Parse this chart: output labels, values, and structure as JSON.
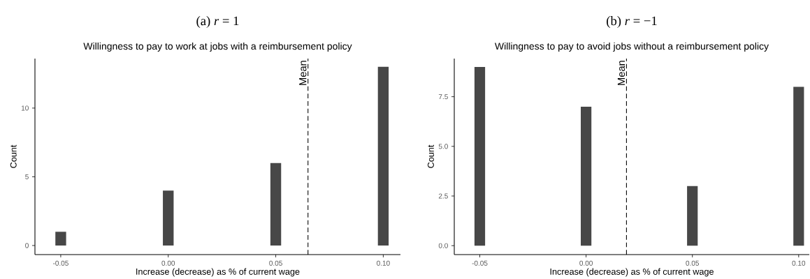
{
  "chart_data": [
    {
      "type": "bar",
      "title": "(a) *r* = 1",
      "subtitle": "Willingness to pay to work at jobs with a reimbursement policy",
      "xlabel": "Increase (decrease) as % of current wage",
      "ylabel": "Count",
      "x": [
        -0.05,
        0.0,
        0.05,
        0.1
      ],
      "values": [
        1,
        4,
        6,
        13
      ],
      "color": "#474747",
      "xlim": [
        -0.062,
        0.108
      ],
      "ylim": [
        -0.66,
        13.6
      ],
      "xticks": [
        {
          "value": -0.05,
          "label": "-0.05"
        },
        {
          "value": 0,
          "label": "0.00"
        },
        {
          "value": 0.05,
          "label": "0.05"
        },
        {
          "value": 0.1,
          "label": "0.10"
        }
      ],
      "yticks": [
        0,
        5,
        10
      ],
      "ref_lines": [
        {
          "axis": "x",
          "value": 0.065,
          "label": "Mean",
          "line_style": "dashed",
          "color": "#000000"
        }
      ]
    },
    {
      "type": "bar",
      "title": "(b) *r* = −1",
      "subtitle": "Willingness to pay to avoid jobs without a reimbursement policy",
      "xlabel": "Increase (decrease) as % of current wage",
      "ylabel": "Count",
      "x": [
        -0.05,
        0.0,
        0.05,
        0.1
      ],
      "values": [
        9,
        7,
        3,
        8
      ],
      "color": "#474747",
      "xlim": [
        -0.062,
        0.105
      ],
      "ylim": [
        -0.45,
        9.42
      ],
      "xticks": [
        {
          "value": -0.05,
          "label": "-0.05"
        },
        {
          "value": 0,
          "label": "0.00"
        },
        {
          "value": 0.05,
          "label": "0.05"
        },
        {
          "value": 0.1,
          "label": "0.10"
        }
      ],
      "yticks": [
        {
          "value": 0,
          "label": "0.0"
        },
        {
          "value": 2.5,
          "label": "2.5"
        },
        {
          "value": 5,
          "label": "5.0"
        },
        {
          "value": 7.5,
          "label": "7.5"
        }
      ],
      "ref_lines": [
        {
          "axis": "x",
          "value": 0.019,
          "label": "Mean",
          "line_style": "dashed",
          "color": "#000000"
        }
      ]
    }
  ]
}
